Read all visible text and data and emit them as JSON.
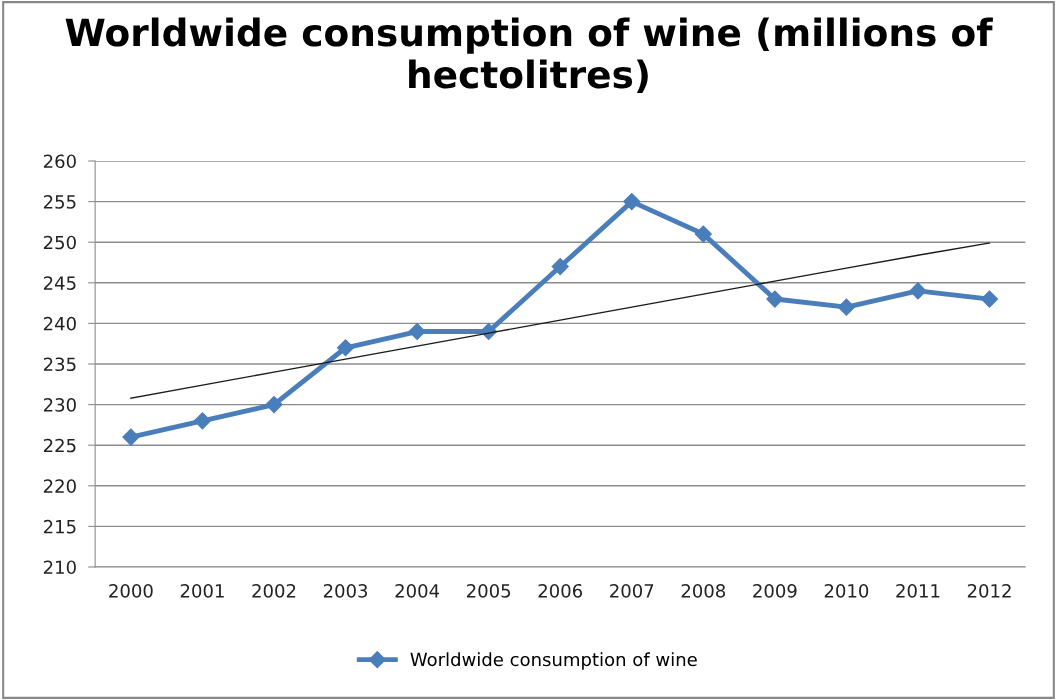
{
  "chart_data": {
    "type": "line",
    "title": "Worldwide consumption of wine (millions of hectolitres)",
    "categories": [
      "2000",
      "2001",
      "2002",
      "2003",
      "2004",
      "2005",
      "2006",
      "2007",
      "2008",
      "2009",
      "2010",
      "2011",
      "2012"
    ],
    "series": [
      {
        "name": "Worldwide consumption of wine",
        "color": "#4a7ebb",
        "marker": "diamond",
        "values": [
          226,
          228,
          230,
          237,
          239,
          239,
          247,
          255,
          251,
          243,
          242,
          244,
          243
        ]
      },
      {
        "type": "line",
        "color": "#1a1a1a",
        "marker": "none",
        "values": [
          230.8,
          232.4,
          234.0,
          235.6,
          237.2,
          238.8,
          240.4,
          242.0,
          243.6,
          245.2,
          246.8,
          248.4,
          249.9
        ]
      }
    ],
    "ylim": [
      210,
      260
    ],
    "yticks": [
      210,
      215,
      220,
      225,
      230,
      235,
      240,
      245,
      250,
      255,
      260
    ],
    "grid": "y",
    "legend": "bottom"
  }
}
